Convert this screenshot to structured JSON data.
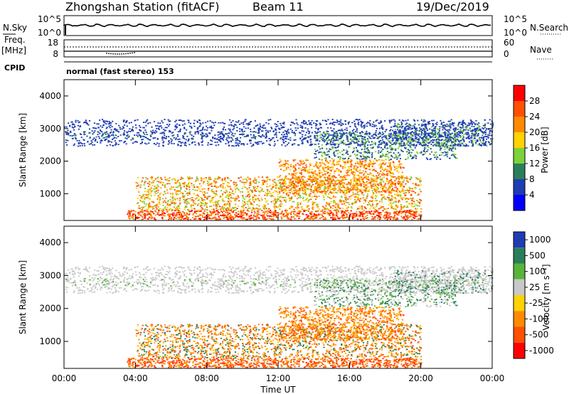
{
  "header": {
    "station": "Zhongshan Station (fitACF)",
    "beam": "Beam 11",
    "date": "19/Dec/2019"
  },
  "top_panels": {
    "nsky_label": "N.Sky",
    "nsky_ticks": [
      "10^5",
      "10^0"
    ],
    "nsearch_label": "N.Search",
    "nsearch_ticks": [
      "10^5",
      "10^0"
    ],
    "freq_label_1": "Freq.",
    "freq_label_2": "[MHz]",
    "freq_ticks": [
      "18",
      "8"
    ],
    "nave_label": "Nave",
    "nave_ticks": [
      "60",
      "0"
    ],
    "cpid_label": "CPID",
    "cpid_text": "normal (fast stereo) 153"
  },
  "chart_data": [
    {
      "type": "heatmap",
      "name": "power-panel",
      "ylabel": "Slant Range [km]",
      "xlabel": "",
      "ylim": [
        180,
        4500
      ],
      "yticks": [
        "1000",
        "2000",
        "3000",
        "4000"
      ],
      "ytick_values": [
        1000,
        2000,
        3000,
        4000
      ],
      "colorbar": {
        "label": "Power [dB]",
        "ticks": [
          "4",
          "8",
          "12",
          "16",
          "20",
          "24",
          "28"
        ],
        "colors": [
          "#0000ff",
          "#1f3cb4",
          "#2a7f5a",
          "#7cd23a",
          "#ffd200",
          "#ff8a00",
          "#ff5000",
          "#ff0000"
        ]
      }
    },
    {
      "type": "heatmap",
      "name": "velocity-panel",
      "ylabel": "Slant Range [km]",
      "xlabel": "Time UT",
      "ylim": [
        180,
        4500
      ],
      "yticks": [
        "1000",
        "2000",
        "3000",
        "4000"
      ],
      "ytick_values": [
        1000,
        2000,
        3000,
        4000
      ],
      "colorbar": {
        "label": "Velocity  [m s⁻¹]",
        "ticks": [
          "1000",
          "500",
          "100",
          "25",
          "-25",
          "-100",
          "-500",
          "-1000"
        ],
        "colors": [
          "#1f3cb4",
          "#2a7f5a",
          "#5ab43a",
          "#c8c8c8",
          "#ffd200",
          "#ff8a00",
          "#ff5000",
          "#ff0000"
        ]
      }
    }
  ],
  "time_axis": {
    "label": "Time UT",
    "ticks": [
      "00:00",
      "04:00",
      "08:00",
      "12:00",
      "16:00",
      "20:00",
      "00:00"
    ],
    "tick_hours": [
      0,
      4,
      8,
      12,
      16,
      20,
      24
    ]
  }
}
